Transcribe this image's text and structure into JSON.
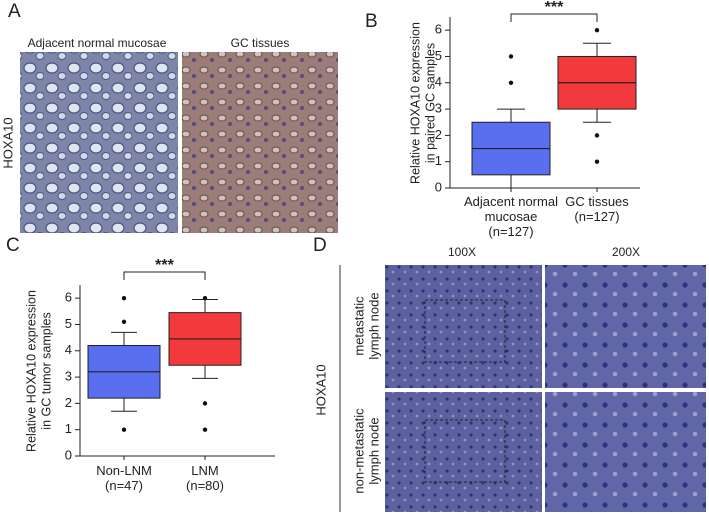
{
  "panel_labels": [
    "A",
    "B",
    "C",
    "D"
  ],
  "panel_a": {
    "row_label": "HOXA10",
    "column_labels": [
      "Adjacent normal mucosae",
      "GC tissues"
    ]
  },
  "panel_d": {
    "column_labels": [
      "100X",
      "200X"
    ],
    "group_label": "HOXA10",
    "row_labels": [
      "metastatic\nlymph node",
      "non-metastatic\nlymph node"
    ]
  },
  "chart_data": [
    {
      "type": "box",
      "y_label": "Relative HOXA10 expression\nin paired GC samples",
      "categories": [
        "Adjacent normal\nmucosae\n(n=127)",
        "GC tissues\n(n=127)"
      ],
      "boxes": [
        {
          "whisker_low": 0,
          "q1": 0.5,
          "median": 1.5,
          "q3": 2.5,
          "whisker_high": 3,
          "outliers": [
            4,
            5
          ],
          "color": "#5a6ff0"
        },
        {
          "whisker_low": 2.5,
          "q1": 3,
          "median": 4,
          "q3": 5,
          "whisker_high": 5.5,
          "outliers": [
            6,
            2,
            1
          ],
          "color": "#f23a3d"
        }
      ],
      "annotation": "***",
      "ylim": [
        0,
        6.5
      ],
      "yticks": [
        0,
        1,
        2,
        3,
        4,
        5,
        6
      ]
    },
    {
      "type": "box",
      "y_label": "Relative HOXA10 expression\nin GC tumor samples",
      "categories": [
        "Non-LNM\n(n=47)",
        "LNM\n(n=80)"
      ],
      "boxes": [
        {
          "whisker_low": 1.7,
          "q1": 2.2,
          "median": 3.2,
          "q3": 4.2,
          "whisker_high": 4.7,
          "outliers": [
            6,
            5.1,
            1
          ],
          "color": "#5a6ff0"
        },
        {
          "whisker_low": 2.95,
          "q1": 3.45,
          "median": 4.45,
          "q3": 5.45,
          "whisker_high": 5.95,
          "outliers": [
            6,
            2,
            1
          ],
          "color": "#f23a3d"
        }
      ],
      "annotation": "***",
      "ylim": [
        0,
        6.5
      ],
      "yticks": [
        0,
        1,
        2,
        3,
        4,
        5,
        6
      ]
    }
  ]
}
